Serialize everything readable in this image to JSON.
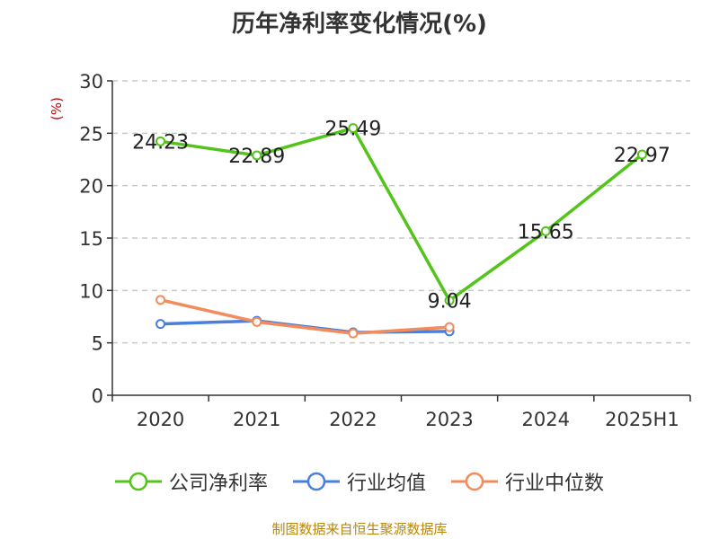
{
  "chart_data": {
    "type": "line",
    "title": "历年净利率变化情况(%)",
    "unit_label": "(%)",
    "categories": [
      "2020",
      "2021",
      "2022",
      "2023",
      "2024",
      "2025H1"
    ],
    "ylim": [
      0,
      30
    ],
    "yticks": [
      0,
      5,
      10,
      15,
      20,
      25,
      30
    ],
    "grid": "horizontal-dashed",
    "legend_position": "bottom-center",
    "series": [
      {
        "name": "公司净利率",
        "color": "#52c41a",
        "values": [
          24.23,
          22.89,
          25.49,
          9.04,
          15.65,
          22.97
        ],
        "labels": [
          "24.23",
          "22.89",
          "25.49",
          "9.04",
          "15.65",
          "22.97"
        ]
      },
      {
        "name": "行业均值",
        "color": "#4a7fdc",
        "values": [
          6.8,
          7.1,
          6.0,
          6.1,
          null,
          null
        ]
      },
      {
        "name": "行业中位数",
        "color": "#f28c5c",
        "values": [
          9.1,
          7.0,
          5.9,
          6.5,
          null,
          null
        ]
      }
    ]
  },
  "source": "制图数据来自恒生聚源数据库"
}
